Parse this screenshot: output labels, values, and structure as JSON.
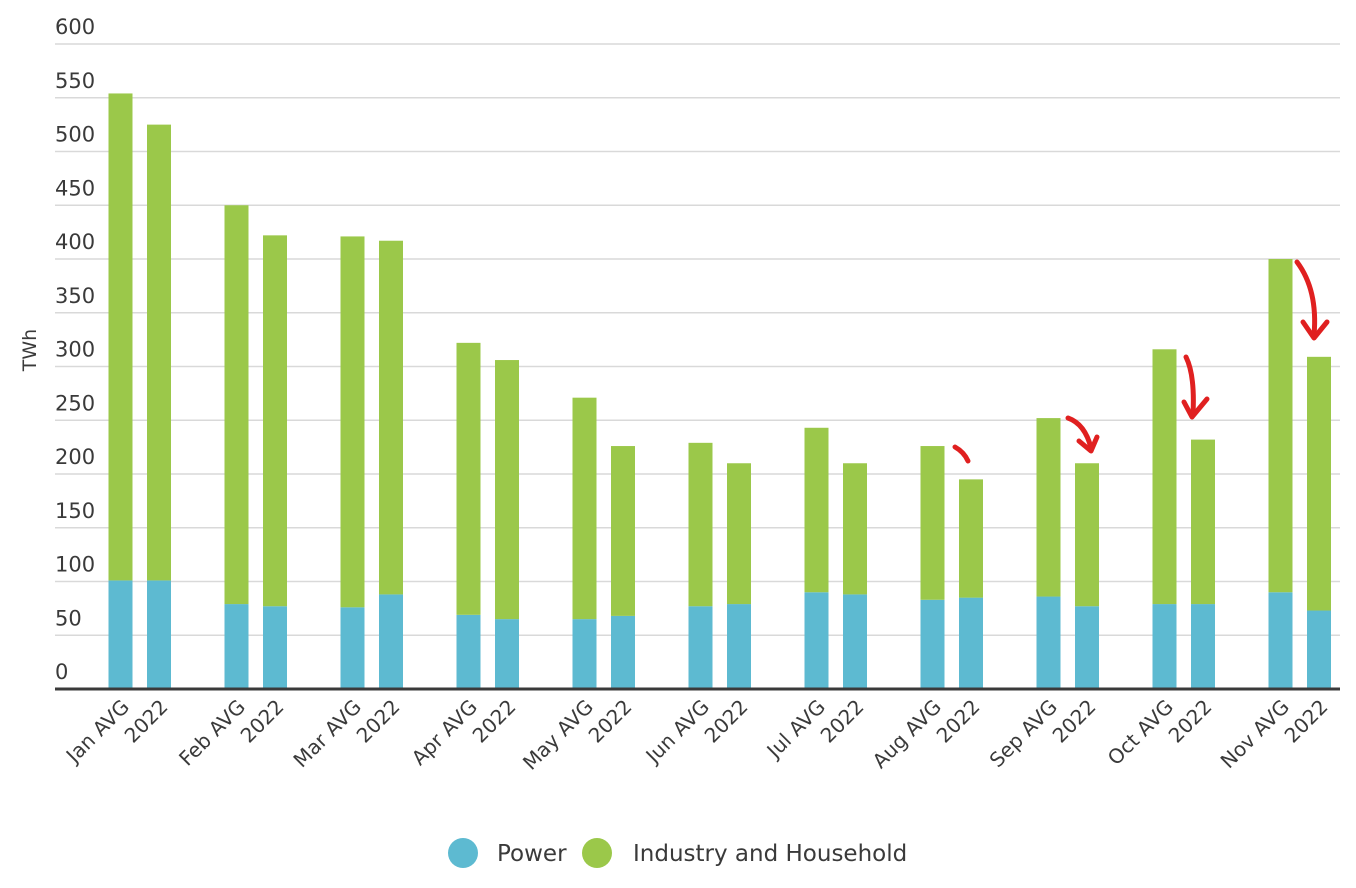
{
  "chart_data": {
    "type": "bar",
    "stacked": true,
    "title": "",
    "xlabel": "",
    "ylabel": "TWh",
    "ylim": [
      0,
      600
    ],
    "yticks": [
      0,
      50,
      100,
      150,
      200,
      250,
      300,
      350,
      400,
      450,
      500,
      550,
      600
    ],
    "grid": true,
    "legend": "bottom-center",
    "categories": [
      "Jan AVG",
      "2022",
      "Feb AVG",
      "2022",
      "Mar AVG",
      "2022",
      "Apr AVG",
      "2022",
      "May AVG",
      "2022",
      "Jun AVG",
      "2022",
      "Jul AVG",
      "2022",
      "Aug AVG",
      "2022",
      "Sep AVG",
      "2022",
      "Oct AVG",
      "2022",
      "Nov AVG",
      "2022"
    ],
    "series": [
      {
        "name": "Power",
        "color": "#5dbad1",
        "values": [
          101,
          101,
          79,
          77,
          76,
          88,
          69,
          65,
          65,
          68,
          77,
          79,
          90,
          88,
          83,
          85,
          86,
          77,
          79,
          79,
          90,
          73
        ]
      },
      {
        "name": "Industry and Household",
        "color": "#9bc84a",
        "values": [
          453,
          424,
          371,
          345,
          345,
          329,
          253,
          241,
          206,
          158,
          152,
          131,
          153,
          122,
          143,
          110,
          166,
          133,
          237,
          153,
          310,
          236
        ]
      }
    ],
    "annotations": [
      {
        "type": "red-arrow",
        "near": "Aug 2022",
        "color": "#e02020"
      },
      {
        "type": "red-arrow",
        "near": "Sep 2022",
        "color": "#e02020"
      },
      {
        "type": "red-arrow",
        "near": "Oct 2022",
        "color": "#e02020"
      },
      {
        "type": "red-arrow",
        "near": "Nov 2022",
        "color": "#e02020"
      }
    ]
  }
}
